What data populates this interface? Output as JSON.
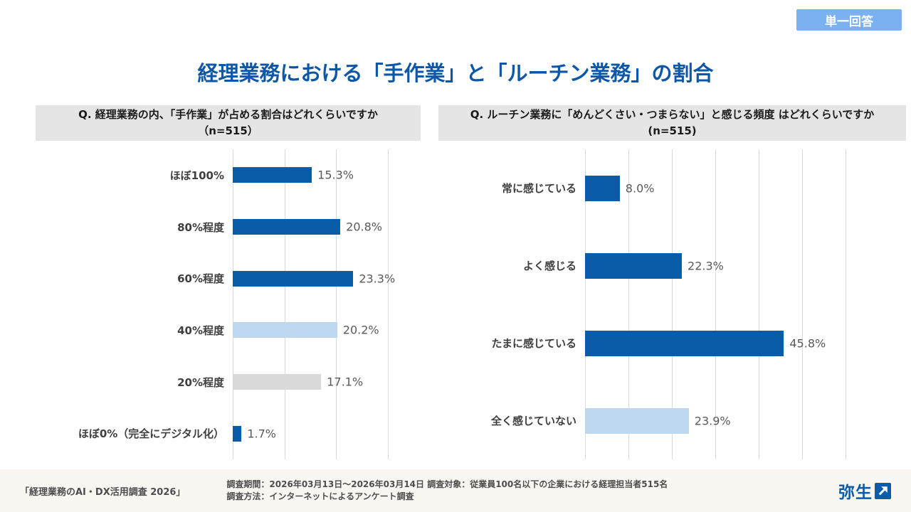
{
  "badge": {
    "label": "単一回答"
  },
  "title": "経理業務における「手作業」と「ルーチン業務」の割合",
  "colors": {
    "title_blue": "#0D57A6",
    "bar_dark": "#0B5CA8",
    "bar_light": "#BDD7EE",
    "bar_gray": "#D9D9D9",
    "badge_bg": "#7CB1F1",
    "header_bg": "#E5E5E5",
    "footer_bg": "#FAF7F2",
    "gridline": "#D9D9D9"
  },
  "chart_data": [
    {
      "type": "bar",
      "orientation": "horizontal",
      "title": "Q. 経理業務の内、「手作業」が占める割合はどれくらいですか",
      "n_label": "（n=515）",
      "categories": [
        "ほぼ100%",
        "80%程度",
        "60%程度",
        "40%程度",
        "20%程度",
        "ほぼ0%（完全にデジタル化）"
      ],
      "values": [
        15.3,
        20.8,
        23.3,
        20.2,
        17.1,
        1.7
      ],
      "labels": [
        "15.3%",
        "20.8%",
        "23.3%",
        "20.2%",
        "17.1%",
        "1.7%"
      ],
      "bar_colors": [
        "#0B5CA8",
        "#0B5CA8",
        "#0B5CA8",
        "#BDD7EE",
        "#D9D9D9",
        "#0B5CA8"
      ],
      "xlim": [
        0,
        30
      ],
      "gridline_step": 10,
      "grid": true,
      "unit": "%"
    },
    {
      "type": "bar",
      "orientation": "horizontal",
      "title": "Q. ルーチン業務に「めんどくさい・つまらない」と感じる頻度 はどれくらいですか",
      "n_label": "(n=515)",
      "categories": [
        "常に感じている",
        "よく感じる",
        "たまに感じている",
        "全く感じていない"
      ],
      "values": [
        8.0,
        22.3,
        45.8,
        23.9
      ],
      "labels": [
        "8.0%",
        "22.3%",
        "45.8%",
        "23.9%"
      ],
      "bar_colors": [
        "#0B5CA8",
        "#0B5CA8",
        "#0B5CA8",
        "#BDD7EE"
      ],
      "xlim": [
        0,
        60
      ],
      "gridline_step": 10,
      "grid": true,
      "unit": "%"
    }
  ],
  "footer": {
    "source": "「経理業務のAI・DX活用調査 2026」",
    "details_line1": "調査期間：2026年03月13日～2026年03月14日 調査対象：従業員100名以下の企業における経理担当者515名",
    "details_line2": "調査方法：インターネットによるアンケート調査",
    "logo_text": "弥生",
    "logo_mark_icon": "arrow-up-right-icon"
  }
}
